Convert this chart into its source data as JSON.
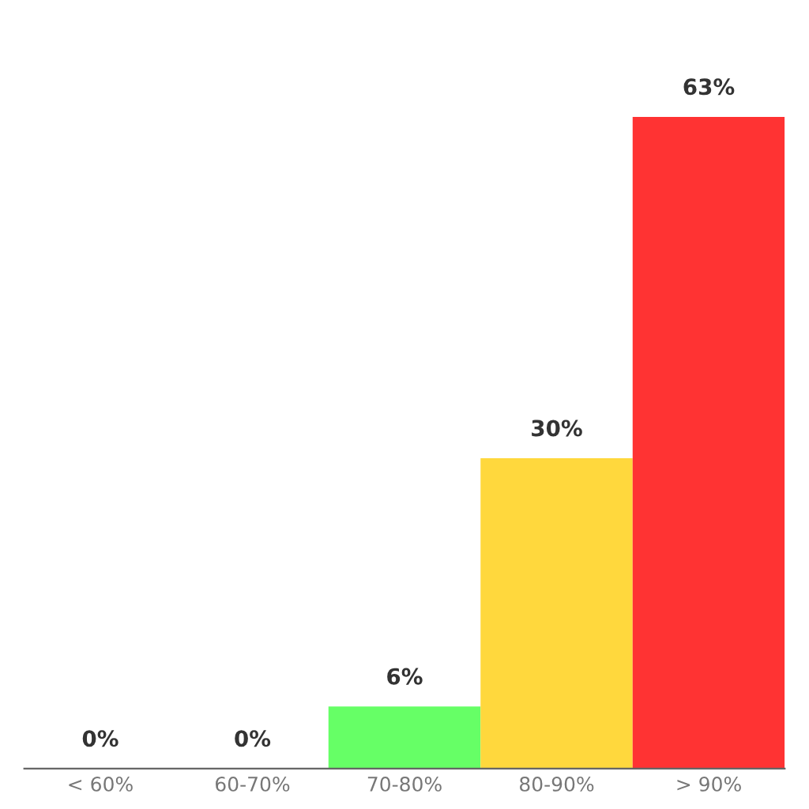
{
  "chart_data": {
    "type": "bar",
    "categories": [
      "< 60%",
      "60-70%",
      "70-80%",
      "80-90%",
      "> 90%"
    ],
    "values": [
      0,
      0,
      6,
      30,
      63
    ],
    "colors": [
      "#4a7fa8",
      "#3a8bc0",
      "#66ff66",
      "#ffd83d",
      "#ff3333"
    ],
    "value_labels": [
      "0%",
      "0%",
      "6%",
      "30%",
      "63%"
    ],
    "grid": false,
    "legend": false
  }
}
